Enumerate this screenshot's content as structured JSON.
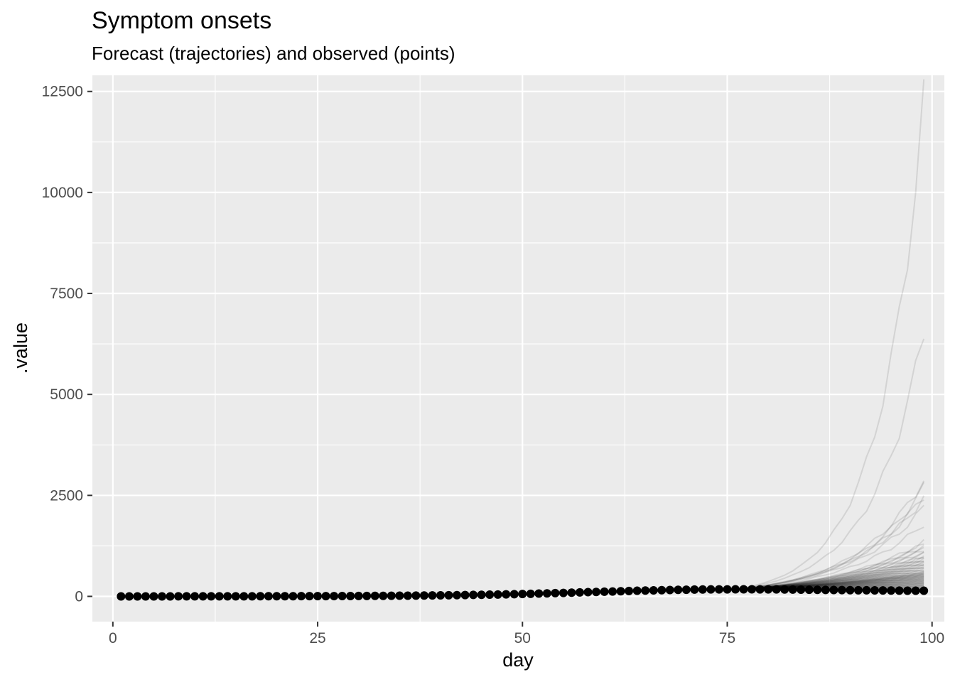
{
  "chart_data": {
    "type": "line",
    "title": "Symptom onsets",
    "subtitle": "Forecast (trajectories) and observed (points)",
    "xlabel": "day",
    "ylabel": ".value",
    "xlim": [
      -2.5,
      101.5
    ],
    "ylim": [
      -625,
      12900
    ],
    "x_ticks": [
      0,
      25,
      50,
      75,
      100
    ],
    "x_tick_labels": [
      "0",
      "25",
      "50",
      "75",
      "100"
    ],
    "y_ticks": [
      0,
      2500,
      5000,
      7500,
      10000,
      12500
    ],
    "y_tick_labels": [
      "0",
      "2500",
      "5000",
      "7500",
      "10000",
      "12500"
    ],
    "grid": true,
    "legend": "none",
    "colors": {
      "panel_background": "#ebebeb",
      "grid": "#ffffff",
      "observed_points": "#000000",
      "trajectories": "#000000"
    },
    "observed": {
      "name": "observed",
      "x": [
        1,
        2,
        3,
        4,
        5,
        6,
        7,
        8,
        9,
        10,
        11,
        12,
        13,
        14,
        15,
        16,
        17,
        18,
        19,
        20,
        21,
        22,
        23,
        24,
        25,
        26,
        27,
        28,
        29,
        30,
        31,
        32,
        33,
        34,
        35,
        36,
        37,
        38,
        39,
        40,
        41,
        42,
        43,
        44,
        45,
        46,
        47,
        48,
        49,
        50,
        51,
        52,
        53,
        54,
        55,
        56,
        57,
        58,
        59,
        60,
        61,
        62,
        63,
        64,
        65,
        66,
        67,
        68,
        69,
        70,
        71,
        72,
        73,
        74,
        75,
        76,
        77,
        78,
        79,
        80,
        81,
        82,
        83,
        84,
        85,
        86,
        87,
        88,
        89,
        90,
        91,
        92,
        93,
        94,
        95,
        96,
        97,
        98,
        99
      ],
      "y": [
        0,
        0,
        0,
        0,
        0,
        0,
        0,
        1,
        1,
        1,
        1,
        1,
        1,
        2,
        2,
        2,
        2,
        3,
        3,
        3,
        4,
        4,
        5,
        5,
        6,
        6,
        7,
        8,
        9,
        10,
        11,
        12,
        13,
        14,
        16,
        17,
        19,
        21,
        23,
        25,
        27,
        30,
        33,
        36,
        39,
        43,
        46,
        50,
        55,
        59,
        64,
        69,
        75,
        80,
        86,
        92,
        98,
        104,
        110,
        116,
        121,
        127,
        133,
        139,
        144,
        149,
        153,
        158,
        162,
        165,
        168,
        170,
        172,
        173,
        174,
        175,
        175,
        175,
        174,
        173,
        172,
        170,
        168,
        166,
        164,
        162,
        160,
        158,
        156,
        154,
        152,
        150,
        148,
        146,
        144,
        142,
        141,
        140,
        139
      ]
    },
    "trajectories": {
      "x_start": 76,
      "x_end": 99,
      "start_value": 175,
      "end_values": [
        12200,
        6550,
        2900,
        2700,
        2500,
        2450,
        2200,
        1800,
        1350,
        1300,
        1250,
        1200,
        1150,
        1100,
        1050,
        1000,
        980,
        950,
        920,
        900,
        870,
        850,
        820,
        800,
        780,
        760,
        740,
        720,
        700,
        680,
        660,
        640,
        620,
        600,
        590,
        580,
        570,
        560,
        550,
        540,
        530,
        520,
        510,
        500,
        490,
        480,
        470,
        460,
        450,
        440,
        430,
        420,
        410,
        400,
        390,
        380,
        370,
        360,
        350,
        340,
        330,
        320,
        310,
        300,
        290,
        280,
        270,
        260,
        250,
        240,
        230,
        220,
        210,
        200,
        190,
        180,
        170,
        160,
        150
      ]
    }
  }
}
